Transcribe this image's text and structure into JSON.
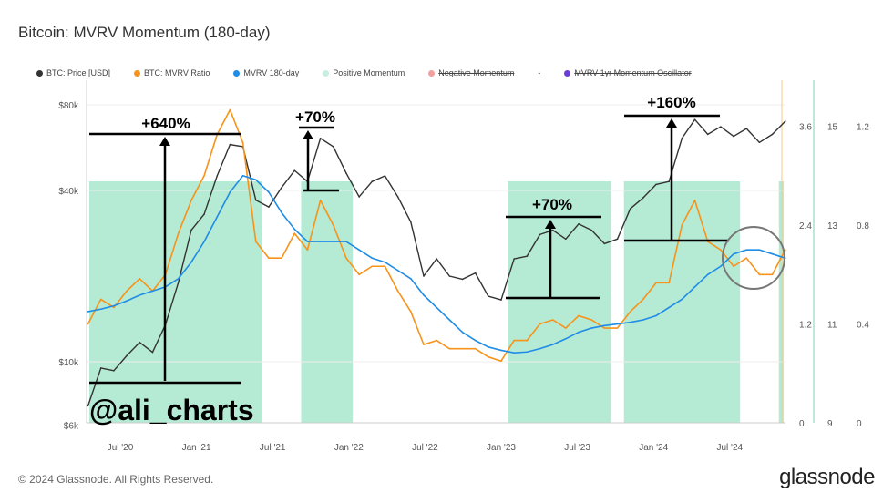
{
  "title": "Bitcoin: MVRV Momentum (180-day)",
  "footer": "© 2024 Glassnode. All Rights Reserved.",
  "brand": "glassnode",
  "legend": [
    {
      "label": "BTC: Price [USD]",
      "color": "#333333",
      "struck": false
    },
    {
      "label": "BTC: MVRV Ratio",
      "color": "#f7931a",
      "struck": false
    },
    {
      "label": "MVRV 180-day",
      "color": "#1f8ce6",
      "struck": false
    },
    {
      "label": "Positive Momentum",
      "color": "#c9eee0",
      "struck": false
    },
    {
      "label": "Negative Momentum",
      "color": "#f0a0a0",
      "struck": true
    },
    {
      "label": "-",
      "color": "",
      "struck": false
    },
    {
      "label": "MVRV 1yr Momentum Oscillator",
      "color": "#6a3fd8",
      "struck": true
    }
  ],
  "chart_data": {
    "type": "line",
    "title": "Bitcoin: MVRV Momentum (180-day)",
    "x_ticks": [
      "Jul '20",
      "Jan '21",
      "Jul '21",
      "Jan '22",
      "Jul '22",
      "Jan '23",
      "Jul '23",
      "Jan '24",
      "Jul '24"
    ],
    "y_left": {
      "scale": "log",
      "ticks": [
        "$6k",
        "$10k",
        "$40k",
        "$80k"
      ],
      "tick_values": [
        6000,
        10000,
        40000,
        80000
      ],
      "range": [
        6000,
        120000
      ]
    },
    "y_right": [
      {
        "ticks": [
          "0",
          "1.2",
          "2.4",
          "3.6"
        ],
        "range": [
          0,
          4.0
        ]
      },
      {
        "ticks": [
          "9",
          "11",
          "13",
          "15"
        ]
      },
      {
        "ticks": [
          "0",
          "0.4",
          "0.8",
          "1.2"
        ]
      }
    ],
    "dates": [
      "2020-04",
      "2020-05",
      "2020-06",
      "2020-07",
      "2020-08",
      "2020-09",
      "2020-10",
      "2020-11",
      "2020-12",
      "2021-01",
      "2021-02",
      "2021-03",
      "2021-04",
      "2021-05",
      "2021-06",
      "2021-07",
      "2021-08",
      "2021-09",
      "2021-10",
      "2021-11",
      "2021-12",
      "2022-01",
      "2022-02",
      "2022-03",
      "2022-04",
      "2022-05",
      "2022-06",
      "2022-07",
      "2022-08",
      "2022-09",
      "2022-10",
      "2022-11",
      "2022-12",
      "2023-01",
      "2023-02",
      "2023-03",
      "2023-04",
      "2023-05",
      "2023-06",
      "2023-07",
      "2023-08",
      "2023-09",
      "2023-10",
      "2023-11",
      "2023-12",
      "2024-01",
      "2024-02",
      "2024-03",
      "2024-04",
      "2024-05",
      "2024-06",
      "2024-07",
      "2024-08",
      "2024-09",
      "2024-10"
    ],
    "series": [
      {
        "name": "BTC: Price [USD]",
        "color": "#333333",
        "axis": "left",
        "values": [
          7000,
          9500,
          9300,
          10500,
          11700,
          10800,
          13500,
          19000,
          29000,
          33000,
          45000,
          58000,
          57000,
          37000,
          35000,
          41000,
          47000,
          43000,
          61000,
          57000,
          46000,
          38000,
          43000,
          45000,
          38000,
          31000,
          20000,
          23000,
          20000,
          19500,
          20500,
          17000,
          16500,
          23000,
          23500,
          28000,
          29000,
          27000,
          30500,
          29000,
          26000,
          27000,
          34500,
          37700,
          42000,
          43000,
          61000,
          71000,
          63000,
          67000,
          62000,
          66000,
          59000,
          63000,
          70000
        ]
      },
      {
        "name": "BTC: MVRV Ratio",
        "color": "#f7931a",
        "axis": "right",
        "values": [
          1.2,
          1.5,
          1.4,
          1.6,
          1.75,
          1.6,
          1.8,
          2.3,
          2.7,
          3.0,
          3.5,
          3.8,
          3.4,
          2.2,
          2.0,
          2.0,
          2.3,
          2.1,
          2.7,
          2.4,
          2.0,
          1.8,
          1.9,
          1.9,
          1.6,
          1.35,
          0.95,
          1.0,
          0.9,
          0.9,
          0.9,
          0.8,
          0.75,
          1.0,
          1.0,
          1.2,
          1.25,
          1.15,
          1.3,
          1.25,
          1.15,
          1.15,
          1.35,
          1.5,
          1.7,
          1.7,
          2.4,
          2.7,
          2.2,
          2.1,
          1.9,
          2.0,
          1.8,
          1.8,
          2.1
        ]
      },
      {
        "name": "MVRV 180-day",
        "color": "#1f8ce6",
        "axis": "right",
        "values": [
          1.35,
          1.38,
          1.42,
          1.48,
          1.55,
          1.6,
          1.65,
          1.75,
          1.95,
          2.2,
          2.5,
          2.8,
          3.0,
          2.95,
          2.8,
          2.55,
          2.35,
          2.2,
          2.2,
          2.2,
          2.2,
          2.1,
          2.0,
          1.95,
          1.85,
          1.75,
          1.55,
          1.4,
          1.25,
          1.1,
          1.0,
          0.92,
          0.88,
          0.85,
          0.86,
          0.9,
          0.95,
          1.02,
          1.1,
          1.15,
          1.18,
          1.2,
          1.22,
          1.25,
          1.3,
          1.4,
          1.5,
          1.65,
          1.8,
          1.9,
          2.05,
          2.1,
          2.1,
          2.05,
          2.0
        ]
      }
    ],
    "positive_momentum_periods": [
      [
        "2020-04",
        "2021-05"
      ],
      [
        "2021-09",
        "2021-12"
      ],
      [
        "2023-01",
        "2023-08"
      ],
      [
        "2023-10",
        "2024-06"
      ],
      [
        "2024-10",
        "2024-10"
      ]
    ],
    "annotations": [
      "+640%",
      "+70%",
      "+70%",
      "+160%",
      "@ali_charts"
    ],
    "grid": true
  }
}
